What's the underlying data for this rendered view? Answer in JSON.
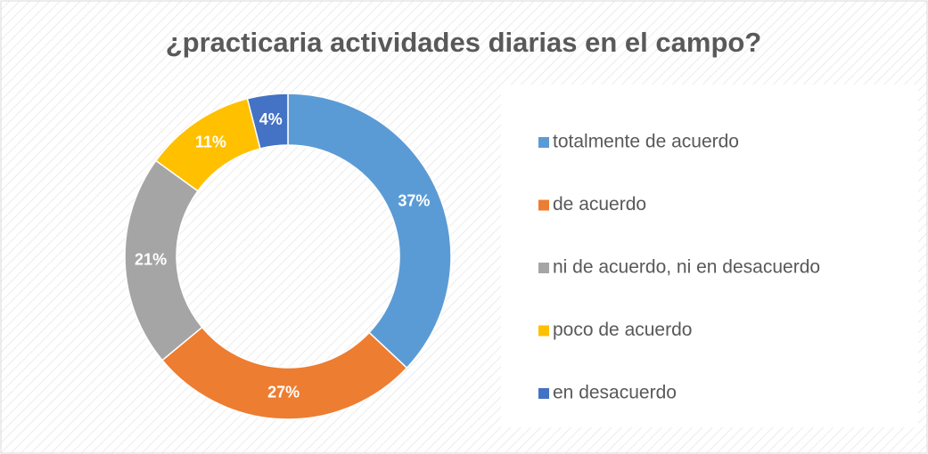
{
  "chart_data": {
    "type": "donut",
    "title": "¿practicaria actividades diarias en el campo?",
    "categories": [
      "totalmente de acuerdo",
      "de acuerdo",
      "ni de acuerdo, ni en desacuerdo",
      "poco de acuerdo",
      "en desacuerdo"
    ],
    "values": [
      37,
      27,
      21,
      11,
      4
    ],
    "value_labels": [
      "37%",
      "27%",
      "21%",
      "11%",
      "4%"
    ],
    "colors": [
      "#5b9bd5",
      "#ed7d31",
      "#a5a5a5",
      "#ffc000",
      "#4472c4"
    ],
    "legend": "right"
  }
}
